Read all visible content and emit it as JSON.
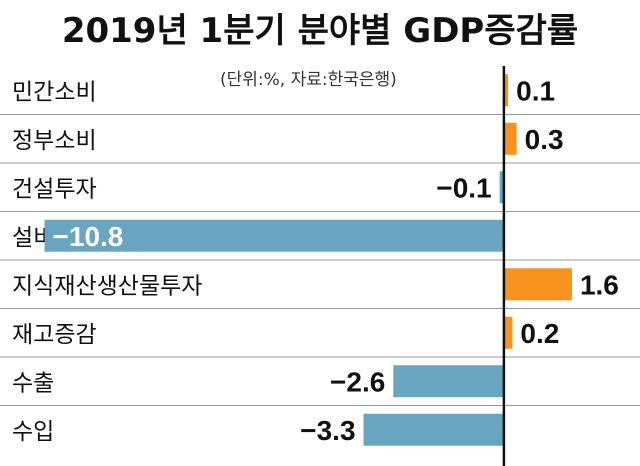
{
  "chart_data": {
    "type": "bar",
    "orientation": "horizontal",
    "title": "2019년 1분기 분야별 GDP증감률",
    "note": "(단위:%, 자료:한국은행)",
    "categories": [
      "민간소비",
      "정부소비",
      "건설투자",
      "설비투자",
      "지식재산생산물투자",
      "재고증감",
      "수출",
      "수입"
    ],
    "values": [
      0.1,
      0.3,
      -0.1,
      -10.8,
      1.6,
      0.2,
      -2.6,
      -3.3
    ],
    "value_labels": [
      "0.1",
      "0.3",
      "−0.1",
      "−10.8",
      "1.6",
      "0.2",
      "−2.6",
      "−3.3"
    ],
    "xlim": [
      -11.8,
      3.2
    ],
    "xlabel": "",
    "ylabel": "",
    "grid": false,
    "colors": {
      "positive": "#f7931e",
      "negative": "#6aa5c0",
      "axis": "#111111",
      "divider": "#9a9a9a",
      "text": "#111111",
      "inside_label": "#ffffff"
    }
  }
}
